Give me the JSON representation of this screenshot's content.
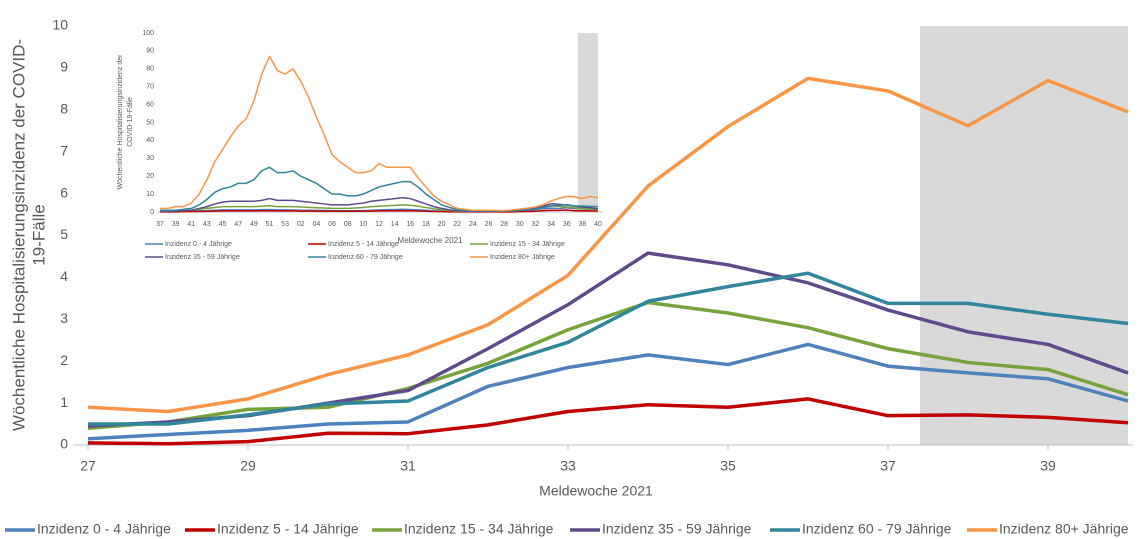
{
  "chart_data": [
    {
      "type": "line",
      "x": [
        27,
        28,
        29,
        30,
        31,
        32,
        33,
        34,
        35,
        36,
        37,
        38,
        39,
        40
      ],
      "xlim": [
        27,
        40
      ],
      "xticks": [
        27,
        29,
        31,
        33,
        35,
        37,
        39
      ],
      "ylim": [
        0,
        10
      ],
      "yticks": [
        0,
        1,
        2,
        3,
        4,
        5,
        6,
        7,
        8,
        9,
        10
      ],
      "x_label": "Meldewoche 2021",
      "y_label": [
        "Wöchentliche Hospitalisierungsinzidenz der COVID-",
        "19-Fälle"
      ],
      "grid": false,
      "legend": "bottom",
      "shade": [
        37.4,
        40
      ],
      "series": [
        {
          "name": "Inzidenz 0 - 4 Jährige",
          "color": "#4f81bd",
          "values": [
            0.15,
            0.25,
            0.35,
            0.5,
            0.55,
            1.4,
            1.85,
            2.15,
            1.92,
            2.4,
            1.88,
            1.72,
            1.58,
            1.05
          ]
        },
        {
          "name": "Inzidenz 5 - 14 Jährige",
          "color": "#c00000",
          "values": [
            0.05,
            0.03,
            0.08,
            0.28,
            0.27,
            0.48,
            0.8,
            0.96,
            0.9,
            1.1,
            0.7,
            0.72,
            0.66,
            0.53
          ]
        },
        {
          "name": "Inzidenz 15 - 34 Jährige",
          "color": "#77a33c",
          "values": [
            0.4,
            0.55,
            0.85,
            0.9,
            1.35,
            1.95,
            2.75,
            3.4,
            3.15,
            2.8,
            2.3,
            1.97,
            1.8,
            1.2
          ]
        },
        {
          "name": "Inzidenz 35 - 59 Jährige",
          "color": "#5f4b8b",
          "values": [
            0.45,
            0.55,
            0.7,
            1.0,
            1.3,
            2.3,
            3.35,
            4.58,
            4.3,
            3.87,
            3.22,
            2.7,
            2.4,
            1.72
          ]
        },
        {
          "name": "Inzidenz 60 - 79 Jährige",
          "color": "#31859c",
          "values": [
            0.5,
            0.5,
            0.72,
            0.98,
            1.05,
            1.85,
            2.45,
            3.43,
            3.78,
            4.1,
            3.38,
            3.38,
            3.12,
            2.9
          ]
        },
        {
          "name": "Inzidenz 80+ Jährige",
          "color": "#f79646",
          "values": [
            0.9,
            0.8,
            1.1,
            1.68,
            2.15,
            2.87,
            4.05,
            6.18,
            7.6,
            8.75,
            8.45,
            7.62,
            8.7,
            7.95
          ]
        }
      ]
    },
    {
      "type": "line",
      "categories": [
        "37",
        null,
        "39",
        null,
        "41",
        null,
        "43",
        null,
        "45",
        null,
        "47",
        null,
        "49",
        null,
        "51",
        null,
        "53",
        null,
        "02",
        null,
        "04",
        null,
        "06",
        null,
        "08",
        null,
        "10",
        null,
        "12",
        null,
        "14",
        null,
        "16",
        null,
        "18",
        null,
        "20",
        null,
        "22",
        null,
        "24",
        null,
        "26",
        null,
        "28",
        null,
        "30",
        null,
        "32",
        null,
        "34",
        null,
        "36",
        null,
        "38",
        null,
        "40"
      ],
      "ylim": [
        0,
        100
      ],
      "yticks": [
        0,
        10,
        20,
        30,
        40,
        50,
        60,
        70,
        80,
        90,
        100
      ],
      "x_label": "Meldewoche 2021",
      "y_label": [
        "Wöchentliche Hospitalisierungsinzidenz der",
        "COVID-19-Fälle"
      ],
      "grid": false,
      "legend": "bottom",
      "shade": [
        53.4,
        56
      ],
      "series": [
        {
          "name": "Inzidenz 0 - 4 Jährige",
          "color": "#4f81bd",
          "values": [
            0.3,
            0.3,
            0.3,
            0.4,
            0.5,
            0.7,
            0.8,
            1,
            1.2,
            1.2,
            1.2,
            1.2,
            1.2,
            1.3,
            1.4,
            1.2,
            1.2,
            1.1,
            1,
            1,
            0.9,
            0.9,
            0.8,
            0.7,
            0.7,
            0.8,
            0.8,
            1,
            1.2,
            1.3,
            1.4,
            1.5,
            1.4,
            1.2,
            1,
            0.7,
            0.5,
            0.3,
            0.2,
            0.2,
            0.15,
            0.15,
            0.15,
            0.15,
            0.25,
            0.35,
            0.5,
            0.55,
            1.4,
            1.85,
            2.15,
            1.92,
            2.4,
            1.88,
            1.72,
            1.58,
            1.05
          ]
        },
        {
          "name": "Inzidenz 5 - 14 Jährige",
          "color": "#c00000",
          "values": [
            0.1,
            0.1,
            0.1,
            0.2,
            0.2,
            0.3,
            0.4,
            0.5,
            0.6,
            0.6,
            0.6,
            0.6,
            0.6,
            0.7,
            0.7,
            0.6,
            0.6,
            0.6,
            0.5,
            0.5,
            0.5,
            0.4,
            0.4,
            0.4,
            0.4,
            0.4,
            0.5,
            0.5,
            0.6,
            0.6,
            0.7,
            0.8,
            0.7,
            0.6,
            0.4,
            0.3,
            0.2,
            0.1,
            0.1,
            0.05,
            0.05,
            0.05,
            0.05,
            0.05,
            0.03,
            0.08,
            0.28,
            0.27,
            0.48,
            0.8,
            0.96,
            0.9,
            1.1,
            0.7,
            0.72,
            0.66,
            0.53
          ]
        },
        {
          "name": "Inzidenz 15 - 34 Jährige",
          "color": "#77a33c",
          "values": [
            0.5,
            0.5,
            0.6,
            0.8,
            1,
            1.5,
            2,
            2.5,
            3,
            3,
            3,
            3,
            3,
            3.2,
            3.5,
            3,
            3,
            3,
            2.8,
            2.6,
            2.4,
            2.2,
            2,
            2,
            2,
            2.2,
            2.5,
            3,
            3.2,
            3.5,
            3.7,
            4,
            3.8,
            3.2,
            2.5,
            1.8,
            1.2,
            0.8,
            0.5,
            0.4,
            0.4,
            0.4,
            0.4,
            0.4,
            0.55,
            0.85,
            0.9,
            1.35,
            1.95,
            2.75,
            3.4,
            3.15,
            2.8,
            2.3,
            1.97,
            1.8,
            1.2
          ]
        },
        {
          "name": "Inzidenz 35 - 59 Jährige",
          "color": "#5f4b8b",
          "values": [
            0.5,
            0.5,
            0.6,
            0.8,
            1,
            2,
            3,
            4.5,
            5.5,
            6,
            6,
            6,
            6,
            6.5,
            7.5,
            6.5,
            6.5,
            6.5,
            6,
            5.5,
            5,
            4.5,
            4,
            4,
            4,
            4.5,
            5,
            6,
            6.5,
            7,
            7.5,
            8,
            7.5,
            6,
            4.5,
            3,
            2,
            1.2,
            0.8,
            0.5,
            0.4,
            0.4,
            0.4,
            0.45,
            0.55,
            0.7,
            1.0,
            1.3,
            2.3,
            3.35,
            4.58,
            4.3,
            3.87,
            3.22,
            2.7,
            2.4,
            1.72
          ]
        },
        {
          "name": "Inzidenz 60 - 79 Jährige",
          "color": "#31859c",
          "values": [
            1,
            1,
            1,
            1.5,
            2,
            4,
            7,
            11,
            13,
            14,
            16,
            16,
            18,
            23,
            25,
            22,
            22,
            23,
            20,
            18,
            16,
            13,
            10,
            10,
            9,
            9,
            10,
            12,
            14,
            15,
            16,
            17,
            17,
            14,
            10,
            7,
            4,
            2.5,
            1.5,
            1,
            0.6,
            0.5,
            0.5,
            0.5,
            0.5,
            0.72,
            0.98,
            1.05,
            1.85,
            2.45,
            3.43,
            3.78,
            4.1,
            3.38,
            3.38,
            3.12,
            2.9
          ]
        },
        {
          "name": "Inzidenz 80+ Jährige",
          "color": "#f79646",
          "values": [
            2,
            2,
            3,
            3,
            5,
            10,
            18,
            28,
            35,
            42,
            48,
            52,
            62,
            77,
            87,
            79,
            77,
            80,
            73,
            64,
            53,
            43,
            32,
            28,
            25,
            22,
            22,
            23,
            27,
            25,
            25,
            25,
            25,
            19,
            14,
            9,
            6,
            4,
            2,
            1.5,
            1,
            1,
            1,
            0.9,
            0.8,
            1.1,
            1.68,
            2.15,
            2.87,
            4.05,
            6.18,
            7.6,
            8.75,
            8.45,
            7.62,
            8.7,
            7.95
          ]
        }
      ]
    }
  ]
}
